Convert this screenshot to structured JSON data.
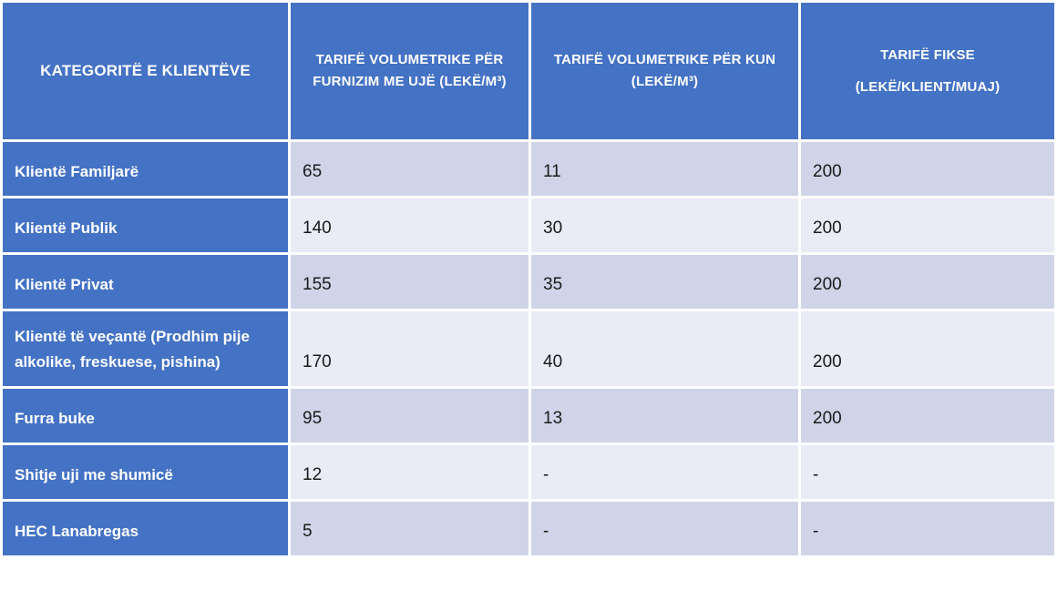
{
  "colors": {
    "header_blue": "#4472C4",
    "band_dark": "#CFD4E8",
    "band_light": "#E9EBF5",
    "gridline_white": "#FFFFFF",
    "header_text": "#FFFFFF",
    "value_text": "#1A1A1A",
    "page_background": "#FFFFFF"
  },
  "table": {
    "columns": [
      {
        "id": "category",
        "line1": "KATEGORITË E KLIENTËVE",
        "line2": ""
      },
      {
        "id": "water",
        "line1": "TARIFË VOLUMETRIKE PËR",
        "line2": "FURNIZIM ME UJË (LEKË/M³)"
      },
      {
        "id": "kun",
        "line1": "TARIFË VOLUMETRIKE PËR KUN",
        "line2": "(LEKË/M³)"
      },
      {
        "id": "fixed",
        "line1": "TARIFË FIKSE",
        "line2": "(LEKË/KLIENT/MUAJ)"
      }
    ],
    "rows": [
      {
        "category": "Klientë Familjarë",
        "water": "65",
        "kun": "11",
        "fixed": "200"
      },
      {
        "category": "Klientë Publik",
        "water": "140",
        "kun": "30",
        "fixed": "200"
      },
      {
        "category": "Klientë Privat",
        "water": "155",
        "kun": "35",
        "fixed": "200"
      },
      {
        "category": "Klientë të veçantë (Prodhim pije alkolike, freskuese, pishina)",
        "water": "170",
        "kun": "40",
        "fixed": "200"
      },
      {
        "category": "Furra buke",
        "water": "95",
        "kun": "13",
        "fixed": "200"
      },
      {
        "category": "Shitje uji me shumicë",
        "water": "12",
        "kun": "-",
        "fixed": "-"
      },
      {
        "category": "HEC Lanabregas",
        "water": "5",
        "kun": "-",
        "fixed": "-"
      }
    ]
  },
  "chart_data": {
    "type": "table",
    "columns": [
      "KATEGORITË E KLIENTËVE",
      "TARIFË VOLUMETRIKE PËR FURNIZIM ME UJË (LEKË/M³)",
      "TARIFË VOLUMETRIKE PËR KUN (LEKË/M³)",
      "TARIFË FIKSE (LEKË/KLIENT/MUAJ)"
    ],
    "rows": [
      [
        "Klientë Familjarë",
        65,
        11,
        200
      ],
      [
        "Klientë Publik",
        140,
        30,
        200
      ],
      [
        "Klientë Privat",
        155,
        35,
        200
      ],
      [
        "Klientë të veçantë (Prodhim pije alkolike, freskuese, pishina)",
        170,
        40,
        200
      ],
      [
        "Furra buke",
        95,
        13,
        200
      ],
      [
        "Shitje uji me shumicë",
        12,
        null,
        null
      ],
      [
        "HEC Lanabregas",
        5,
        null,
        null
      ]
    ]
  }
}
